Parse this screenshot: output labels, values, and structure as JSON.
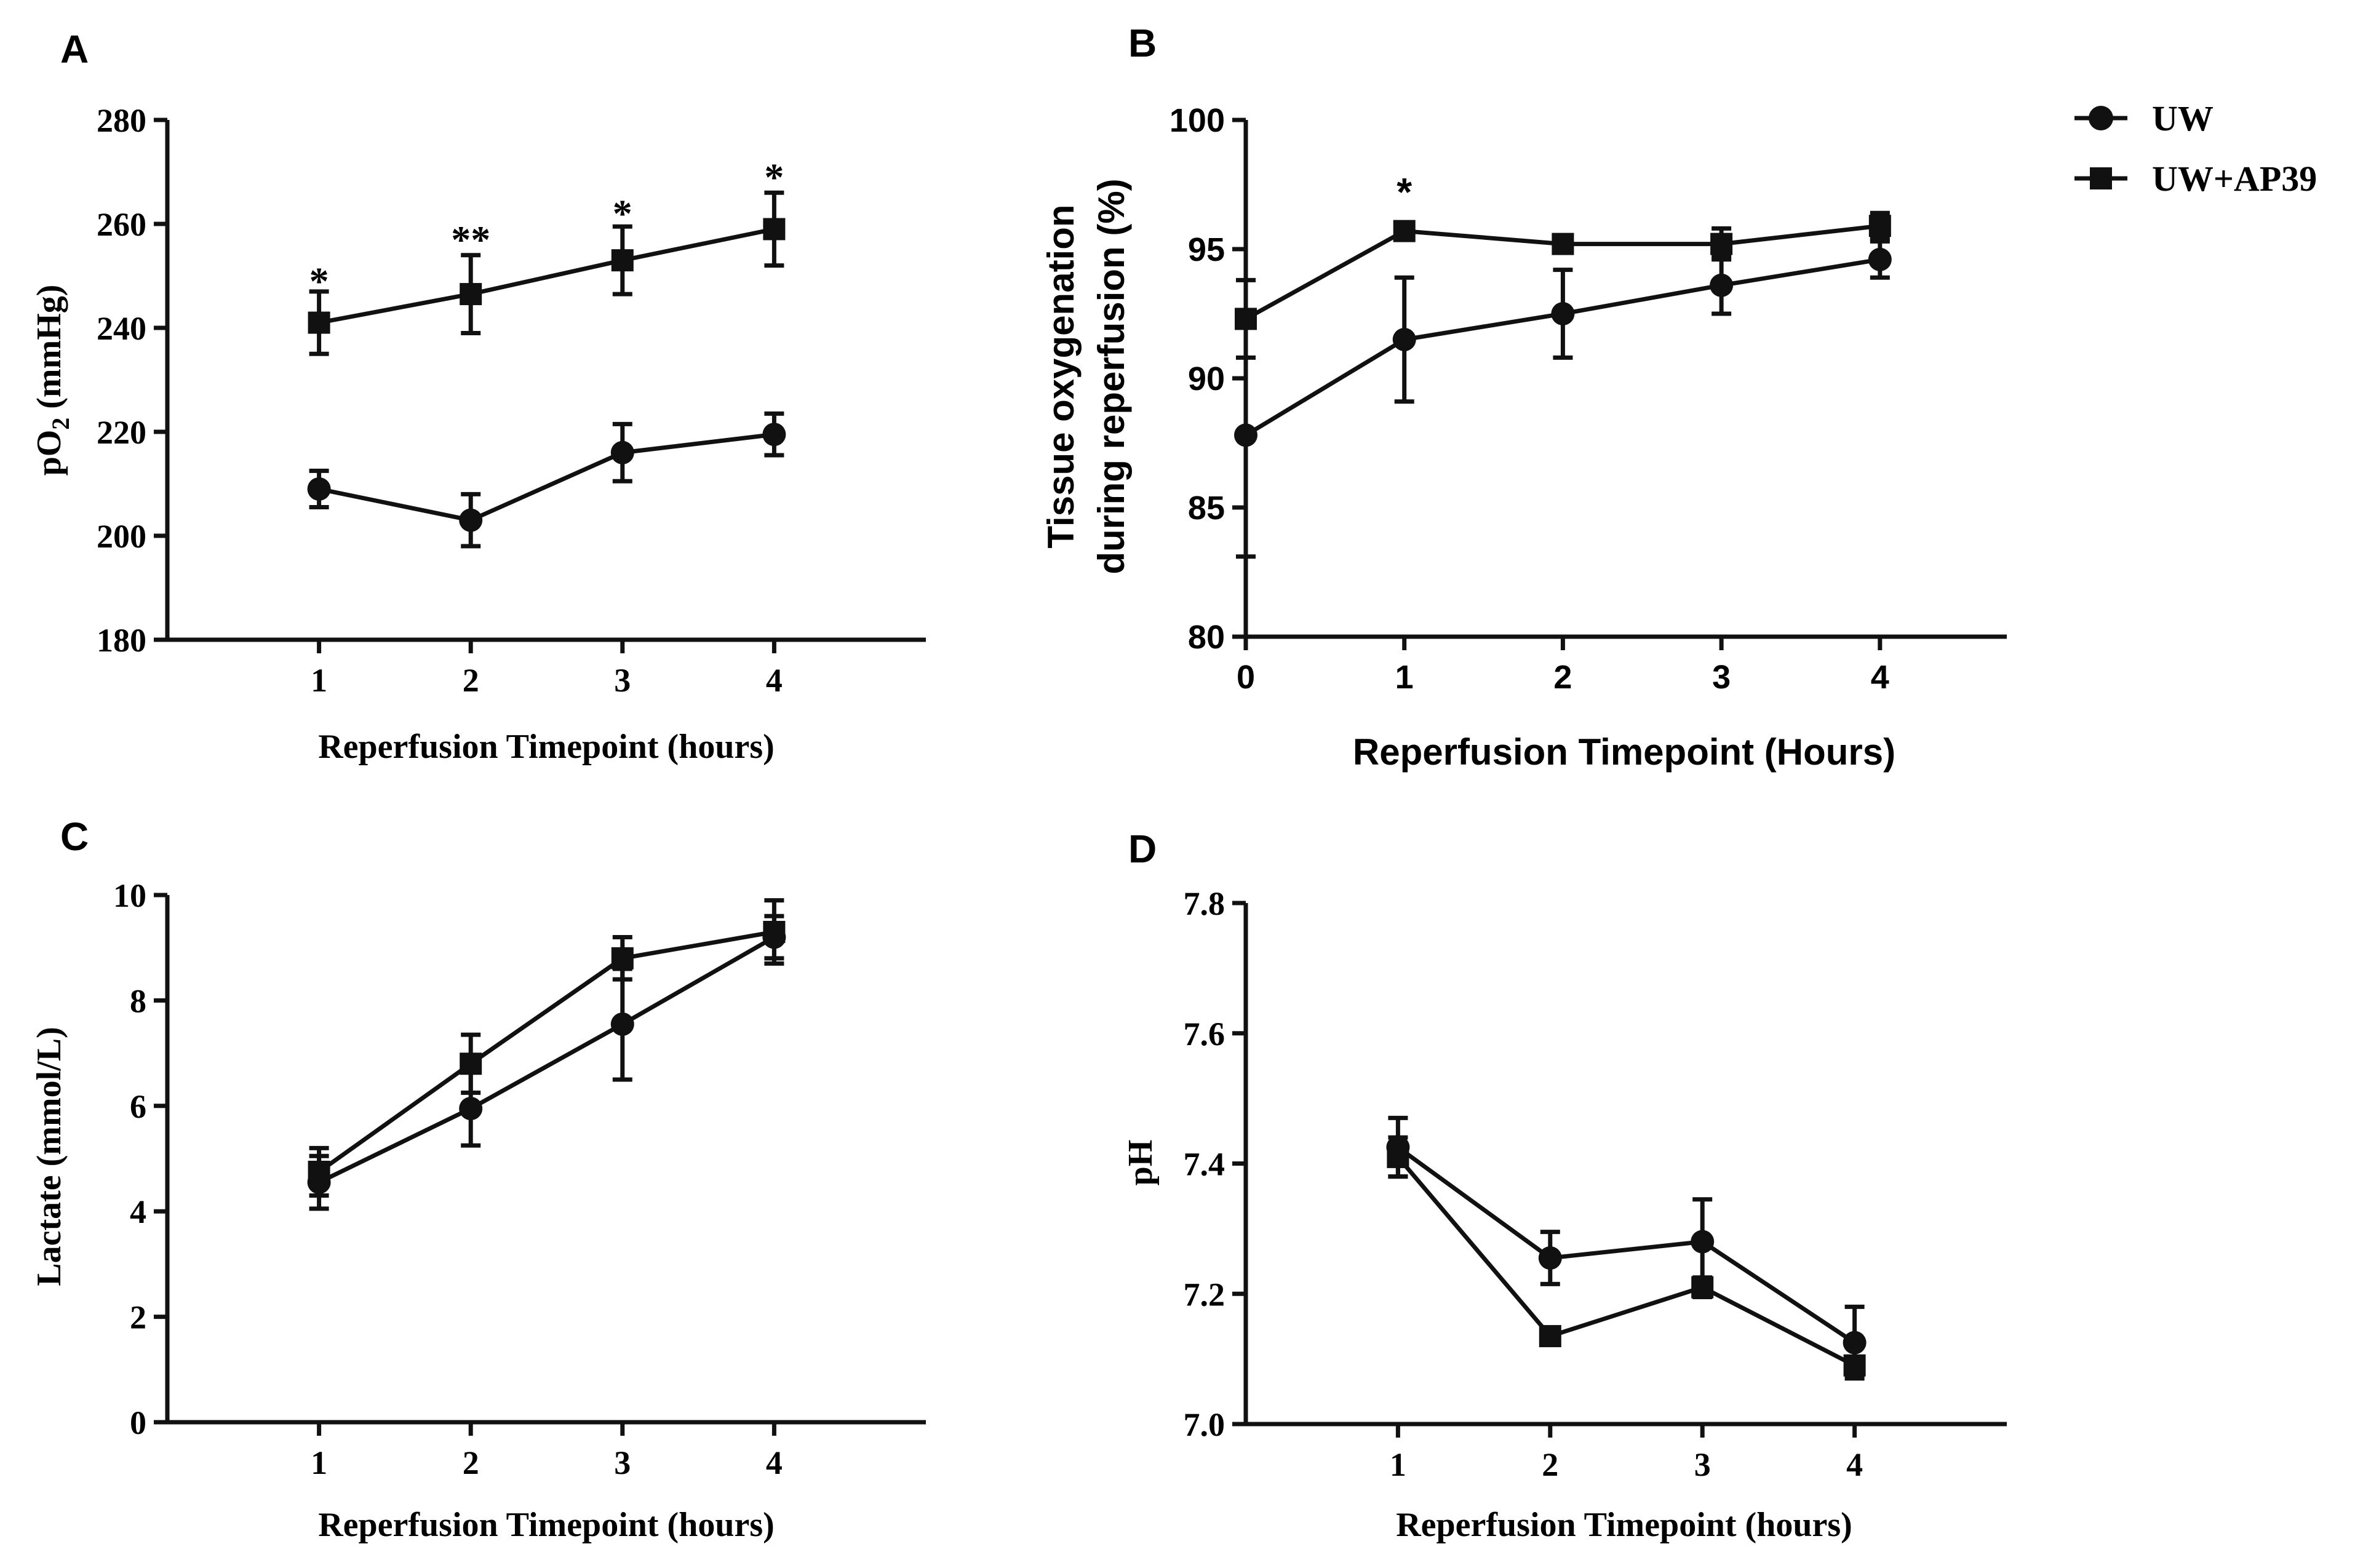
{
  "legend": {
    "entries": [
      {
        "name": "UW",
        "marker": "circle"
      },
      {
        "name": "UW+AP39",
        "marker": "square"
      }
    ]
  },
  "chart_data": [
    {
      "panel": "A",
      "type": "line",
      "xlabel": "Reperfusion Timepoint (hours)",
      "ylabel": "pO₂ (mmHg)",
      "ylabel_base": "pO",
      "ylabel_sub": "2",
      "ylabel_rest": " (mmHg)",
      "x": [
        1,
        2,
        3,
        4
      ],
      "xlim": [
        0,
        5
      ],
      "ylim": [
        180,
        280
      ],
      "yticks": [
        180,
        200,
        220,
        240,
        260,
        280
      ],
      "ytick_labels": [
        "180",
        "200",
        "220",
        "240",
        "260",
        "280"
      ],
      "xtick_labels": [
        "1",
        "2",
        "3",
        "4"
      ],
      "series": [
        {
          "name": "UW",
          "marker": "circle",
          "values": [
            209,
            203,
            216,
            219.5
          ],
          "err": [
            3.5,
            5,
            5.5,
            4
          ]
        },
        {
          "name": "UW+AP39",
          "marker": "square",
          "values": [
            241,
            246.5,
            253,
            259
          ],
          "err": [
            6,
            7.5,
            6.5,
            7
          ]
        }
      ],
      "annotations": [
        {
          "x": 1,
          "y": 250,
          "text": "*"
        },
        {
          "x": 2,
          "y": 258,
          "text": "**"
        },
        {
          "x": 3,
          "y": 263,
          "text": "*"
        },
        {
          "x": 4,
          "y": 270,
          "text": "*"
        }
      ]
    },
    {
      "panel": "B",
      "type": "line",
      "xlabel": "Reperfusion Timepoint (Hours)",
      "ylabel_lines": [
        "Tissue oxygenation",
        "during reperfusion (%)"
      ],
      "x": [
        0,
        1,
        2,
        3,
        4
      ],
      "xlim": [
        0,
        4.8
      ],
      "ylim": [
        80,
        100
      ],
      "yticks": [
        80,
        85,
        90,
        95,
        100
      ],
      "ytick_labels": [
        "80",
        "85",
        "90",
        "95",
        "100"
      ],
      "xtick_labels": [
        "0",
        "1",
        "2",
        "3",
        "4"
      ],
      "series": [
        {
          "name": "UW",
          "marker": "circle",
          "values": [
            87.8,
            91.5,
            92.5,
            93.6,
            94.6
          ],
          "err": [
            4.7,
            2.4,
            1.7,
            1.1,
            0.7
          ]
        },
        {
          "name": "UW+AP39",
          "marker": "square",
          "values": [
            92.3,
            95.7,
            95.2,
            95.2,
            95.9
          ],
          "err": [
            1.5,
            0.3,
            0.3,
            0.6,
            0.5
          ]
        }
      ],
      "annotations": [
        {
          "x": 1,
          "y": 97.4,
          "text": "*"
        }
      ]
    },
    {
      "panel": "C",
      "type": "line",
      "xlabel": "Reperfusion Timepoint (hours)",
      "ylabel": "Lactate (mmol/L)",
      "x": [
        1,
        2,
        3,
        4
      ],
      "xlim": [
        0,
        5
      ],
      "ylim": [
        0,
        10
      ],
      "yticks": [
        0,
        2,
        4,
        6,
        8,
        10
      ],
      "ytick_labels": [
        "0",
        "2",
        "4",
        "6",
        "8",
        "10"
      ],
      "xtick_labels": [
        "1",
        "2",
        "3",
        "4"
      ],
      "series": [
        {
          "name": "UW",
          "marker": "circle",
          "values": [
            4.55,
            5.95,
            7.55,
            9.2
          ],
          "err": [
            0.5,
            0.7,
            1.05,
            0.4
          ]
        },
        {
          "name": "UW+AP39",
          "marker": "square",
          "values": [
            4.75,
            6.8,
            8.8,
            9.3
          ],
          "err": [
            0.45,
            0.55,
            0.4,
            0.6
          ]
        }
      ]
    },
    {
      "panel": "D",
      "type": "line",
      "xlabel": "Reperfusion Timepoint (hours)",
      "ylabel": "pH",
      "x": [
        1,
        2,
        3,
        4
      ],
      "xlim": [
        0,
        5
      ],
      "ylim": [
        7.0,
        7.8
      ],
      "yticks": [
        7.0,
        7.2,
        7.4,
        7.6,
        7.8
      ],
      "ytick_labels": [
        "7.0",
        "7.2",
        "7.4",
        "7.6",
        "7.8"
      ],
      "xtick_labels": [
        "1",
        "2",
        "3",
        "4"
      ],
      "series": [
        {
          "name": "UW",
          "marker": "circle",
          "values": [
            7.425,
            7.255,
            7.28,
            7.125
          ],
          "err": [
            0.045,
            0.04,
            0.065,
            0.055
          ]
        },
        {
          "name": "UW+AP39",
          "marker": "square",
          "values": [
            7.41,
            7.135,
            7.21,
            7.09
          ],
          "err": [
            0.03,
            0.01,
            0.015,
            0.01
          ]
        }
      ]
    }
  ]
}
